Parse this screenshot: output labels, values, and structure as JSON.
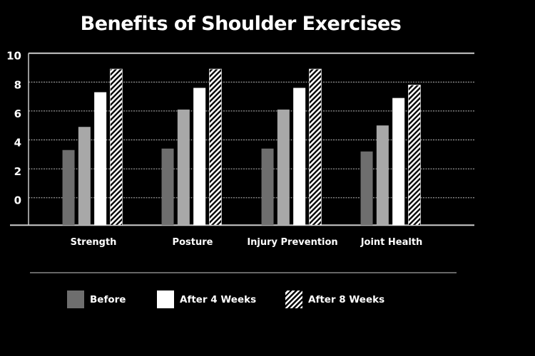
{
  "chart_data": {
    "type": "bar",
    "title": "Benefits of Shoulder Exercises",
    "categories": [
      "Strength",
      "Posture",
      "Injury Prevention",
      "Joint Health"
    ],
    "series": [
      {
        "name": "Before",
        "values": [
          3.3,
          3.4,
          3.4,
          3.2
        ],
        "color": "#6e6e6e",
        "pattern": "solid"
      },
      {
        "values": [
          4.9,
          6.1,
          6.1,
          5.0
        ],
        "color": "#a8a8a8",
        "pattern": "solid"
      },
      {
        "name": "After 4 Weeks",
        "values": [
          7.3,
          7.6,
          7.6,
          6.9
        ],
        "color": "#ffffff",
        "pattern": "solid"
      },
      {
        "name": "After 8 Weeks",
        "values": [
          8.9,
          8.9,
          8.9,
          7.8
        ],
        "color": "#ffffff",
        "pattern": "diagonal-hatch"
      }
    ],
    "yticks": [
      0,
      2,
      4,
      6,
      8,
      10
    ],
    "ylim": [
      -1.9,
      10
    ],
    "grid": true,
    "legend_placement": "bottom",
    "background": "#000000"
  }
}
